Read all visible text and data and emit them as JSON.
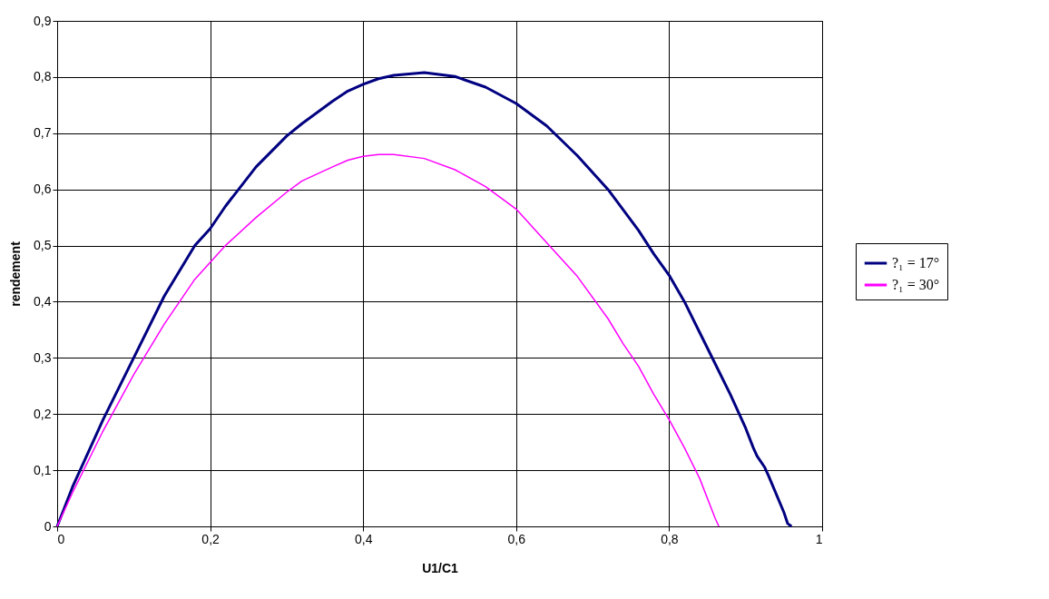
{
  "chart_data": {
    "type": "line",
    "xlabel": "U1/C1",
    "ylabel": "rendement",
    "xlim": [
      0,
      1
    ],
    "xticks": [
      0,
      {
        "value": 0.2,
        "label": "0,2"
      },
      {
        "value": 0.4,
        "label": "0,4"
      },
      {
        "value": 0.6,
        "label": "0,6"
      },
      {
        "value": 0.8,
        "label": "0,8"
      },
      1
    ],
    "ylim": [
      0,
      0.9
    ],
    "yticks": [
      0,
      {
        "value": 0.1,
        "label": "0,1"
      },
      {
        "value": 0.2,
        "label": "0,2"
      },
      {
        "value": 0.3,
        "label": "0,3"
      },
      {
        "value": 0.4,
        "label": "0,4"
      },
      {
        "value": 0.5,
        "label": "0,5"
      },
      {
        "value": 0.6,
        "label": "0,6"
      },
      {
        "value": 0.7,
        "label": "0,7"
      },
      {
        "value": 0.8,
        "label": "0,8"
      },
      {
        "value": 0.9,
        "label": "0,9"
      }
    ],
    "grid": true,
    "legend": "right",
    "marker": "none",
    "line_style": "solid",
    "series": [
      {
        "name": "?₁ = 17°",
        "color": "#000080",
        "x": [
          0,
          0.02,
          0.06,
          0.1,
          0.14,
          0.18,
          0.2,
          0.22,
          0.26,
          0.3,
          0.32,
          0.36,
          0.38,
          0.4,
          0.42,
          0.44,
          0.48,
          0.52,
          0.56,
          0.6,
          0.64,
          0.68,
          0.72,
          0.76,
          0.78,
          0.8,
          0.82,
          0.84,
          0.86,
          0.88,
          0.9,
          0.91,
          0.915,
          0.925,
          0.93,
          0.95,
          0.955,
          0.96
        ],
        "values": [
          0,
          0.07,
          0.19,
          0.3,
          0.41,
          0.5,
          0.53,
          0.57,
          0.64,
          0.695,
          0.717,
          0.757,
          0.775,
          0.787,
          0.797,
          0.803,
          0.808,
          0.801,
          0.782,
          0.753,
          0.713,
          0.66,
          0.6,
          0.527,
          0.485,
          0.447,
          0.4,
          0.345,
          0.29,
          0.235,
          0.175,
          0.14,
          0.125,
          0.105,
          0.09,
          0.025,
          0.005,
          0
        ]
      },
      {
        "name": "?₁ = 30°",
        "color": "#ff00ff",
        "x": [
          0,
          0.02,
          0.06,
          0.1,
          0.14,
          0.18,
          0.22,
          0.26,
          0.3,
          0.32,
          0.36,
          0.38,
          0.4,
          0.42,
          0.44,
          0.48,
          0.52,
          0.56,
          0.6,
          0.64,
          0.68,
          0.72,
          0.74,
          0.76,
          0.78,
          0.8,
          0.82,
          0.84,
          0.86,
          0.865
        ],
        "values": [
          0,
          0.06,
          0.17,
          0.27,
          0.36,
          0.44,
          0.5,
          0.55,
          0.595,
          0.615,
          0.64,
          0.652,
          0.659,
          0.662,
          0.662,
          0.655,
          0.635,
          0.605,
          0.565,
          0.505,
          0.445,
          0.37,
          0.325,
          0.285,
          0.235,
          0.19,
          0.14,
          0.085,
          0.015,
          0
        ]
      }
    ]
  }
}
